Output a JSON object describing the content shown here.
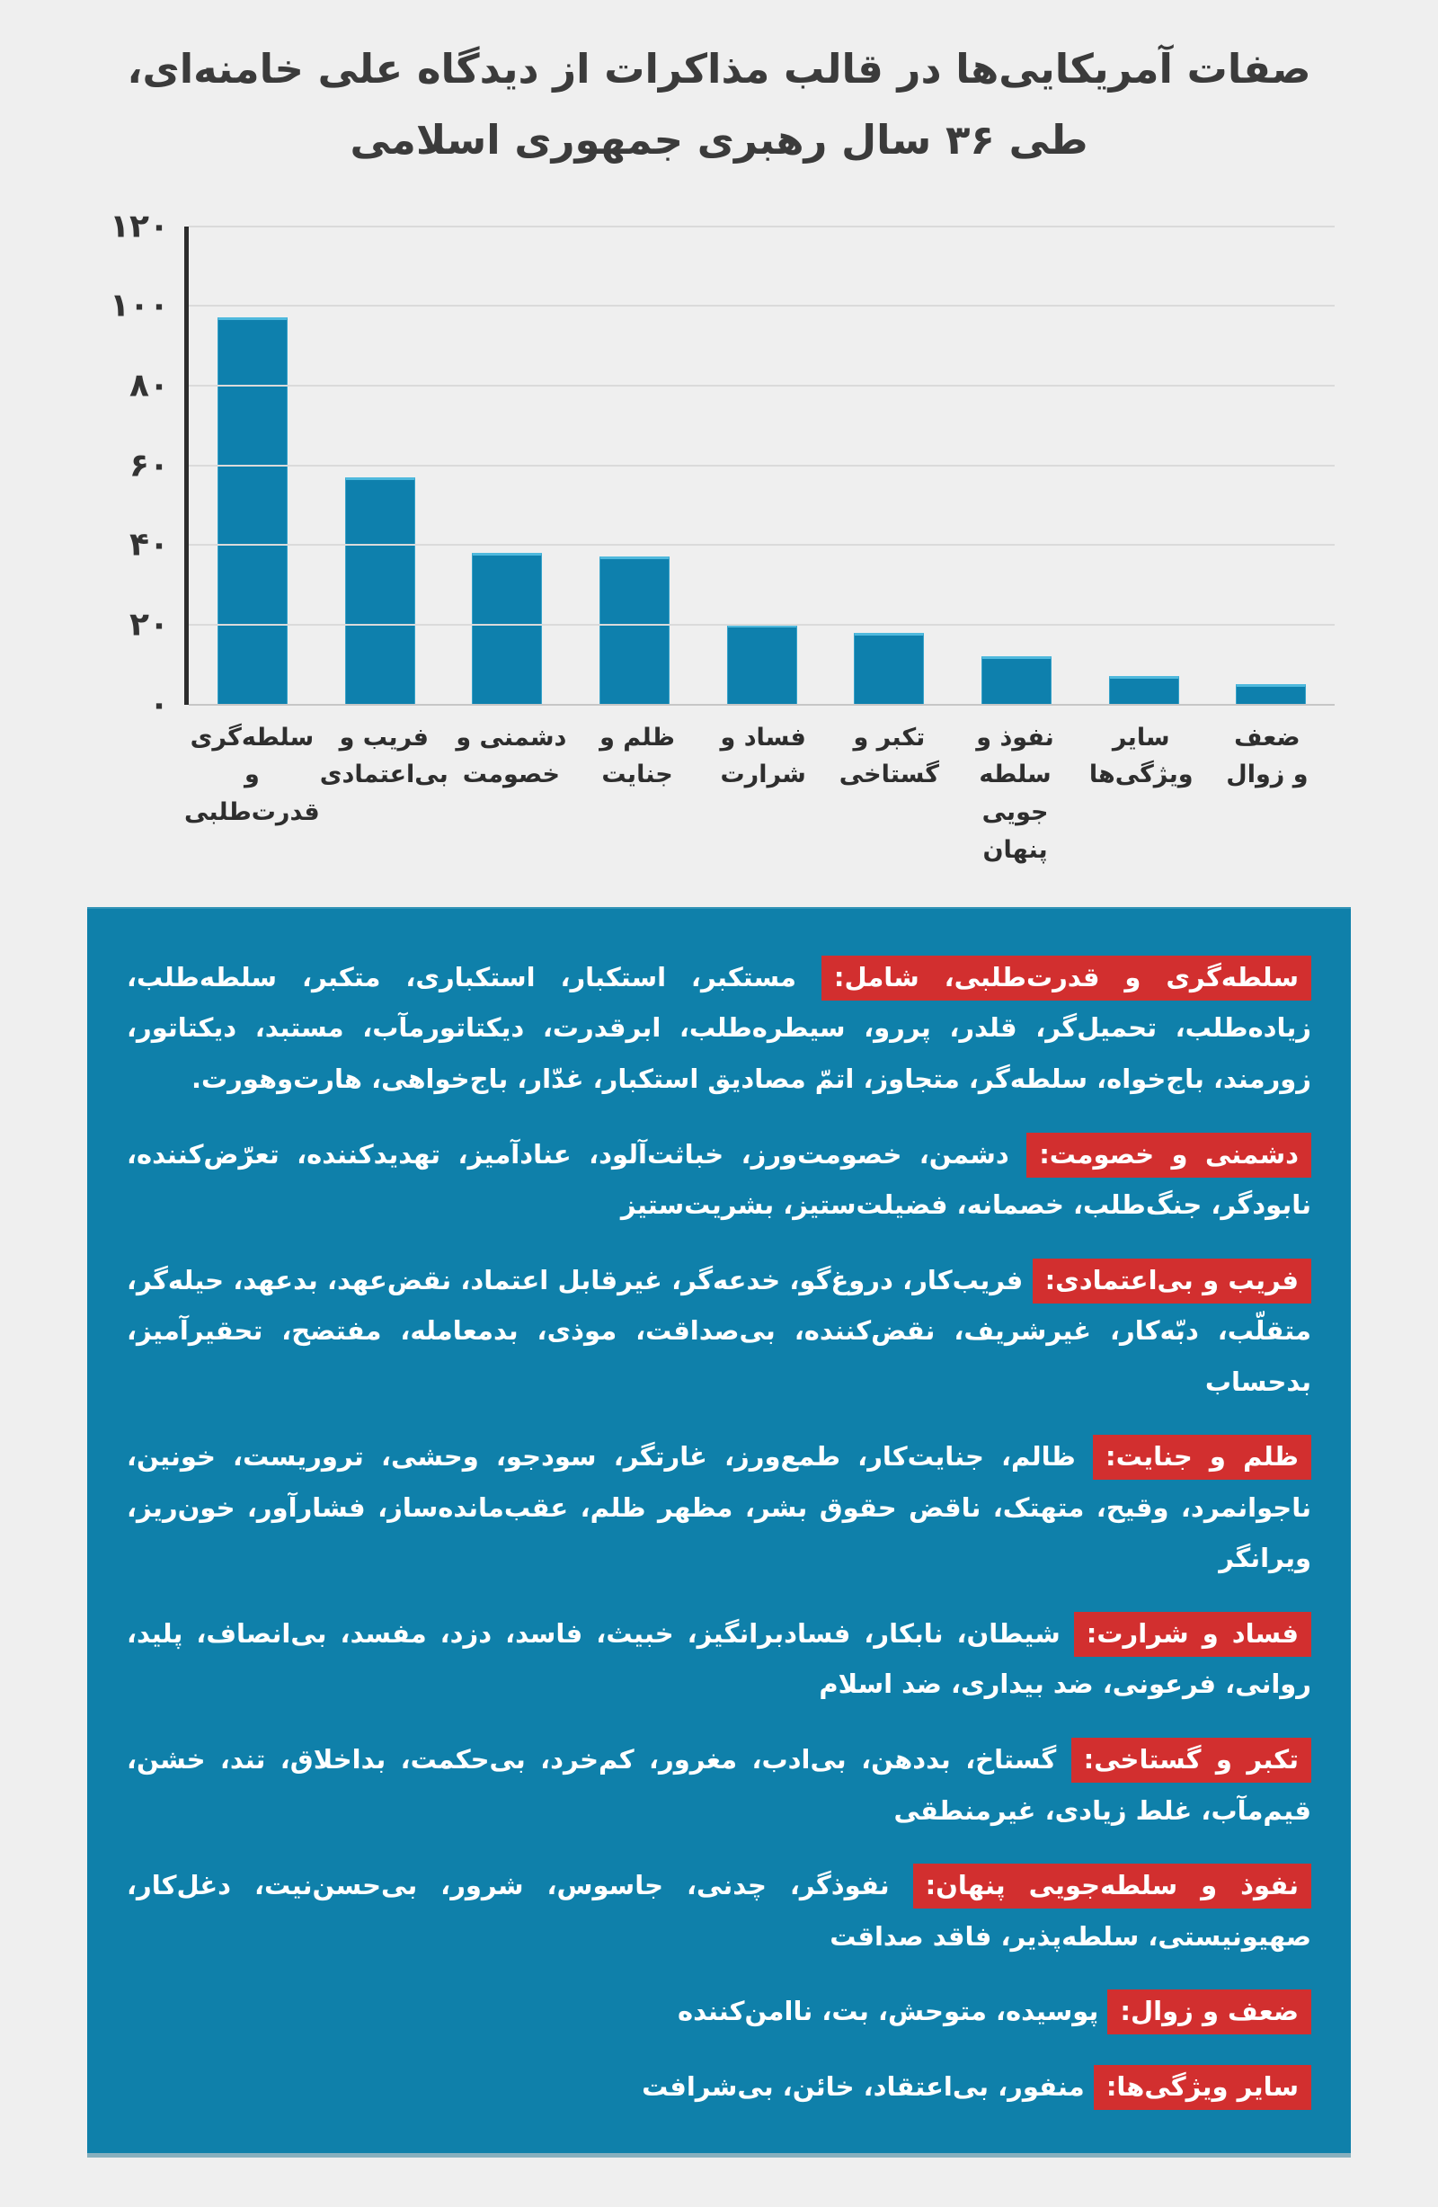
{
  "title": {
    "line1": "صفات آمریکایی‌ها در قالب مذاکرات از دیدگاه علی خامنه‌ای،",
    "line2": "طی ۳۶ سال رهبری جمهوری اسلامی"
  },
  "colors": {
    "page_background": "#efefef",
    "bar_fill": "#0e80ad",
    "bar_edge": "#4fb9dd",
    "panel_background": "#0f80aa",
    "category_tag_background": "#d22f2f",
    "title_text": "#3b3b3b",
    "axis_text": "#333333",
    "gridline": "#dadada",
    "axis_line": "#2c2c2c",
    "panel_text": "#ffffff"
  },
  "chart_data": {
    "type": "bar",
    "title": "صفات آمریکایی‌ها در قالب مذاکرات از دیدگاه علی خامنه‌ای، طی ۳۶ سال رهبری جمهوری اسلامی",
    "xlabel": "",
    "ylabel": "",
    "ylim": [
      0,
      120
    ],
    "grid": true,
    "y_ticks": [
      {
        "v": 0,
        "label": "۰"
      },
      {
        "v": 20,
        "label": "۲۰"
      },
      {
        "v": 40,
        "label": "۴۰"
      },
      {
        "v": 60,
        "label": "۶۰"
      },
      {
        "v": 80,
        "label": "۸۰"
      },
      {
        "v": 100,
        "label": "۱۰۰"
      },
      {
        "v": 120,
        "label": "۱۲۰"
      }
    ],
    "categories": [
      "سلطه‌گری و قدرت‌طلبی",
      "فریب و بی‌اعتمادی",
      "دشمنی و خصومت",
      "ظلم و جنایت",
      "فساد و شرارت",
      "تکبر و گستاخی",
      "نفوذ و سلطه جویی پنهان",
      "سایر ویژگی‌ها",
      "ضعف و زوال"
    ],
    "category_tick_lines": [
      [
        "سلطه‌گری و",
        "قدرت‌طلبی"
      ],
      [
        "فریب و",
        "بی‌اعتمادی"
      ],
      [
        "دشمنی و",
        "خصومت"
      ],
      [
        "ظلم و",
        "جنایت"
      ],
      [
        "فساد و",
        "شرارت"
      ],
      [
        "تکبر و",
        "گستاخی"
      ],
      [
        "نفوذ و سلطه",
        "جویی پنهان"
      ],
      [
        "سایر",
        "ویژگی‌ها"
      ],
      [
        "ضعف",
        "و زوال"
      ]
    ],
    "values": [
      97,
      57,
      38,
      37,
      20,
      18,
      12,
      7,
      5
    ]
  },
  "legend": {
    "items": [
      {
        "label": "سلطه‌گری و قدرت‌طلبی، شامل:",
        "text": "مستکبر، استکبار، استکباری، متکبر، سلطه‌طلب، زیاده‌طلب، تحمیل‌گر، قلدر، پررو، سیطره‌طلب، ابرقدرت، دیکتاتورمآب، مستبد، دیکتاتور، زورمند، باج‌خواه، سلطه‌گر، متجاوز، اتمّ مصادیق استکبار، غدّار، باج‌خواهی، هارت‌وهورت."
      },
      {
        "label": "دشمنی و خصومت:",
        "text": "دشمن، خصومت‌ورز، خباثت‌آلود، عنادآمیز، تهدیدکننده، تعرّض‌کننده، نابودگر، جنگ‌طلب، خصمانه، فضیلت‌ستیز، بشریت‌ستیز"
      },
      {
        "label": "فریب و بی‌اعتمادی:",
        "text": "فریب‌کار، دروغ‌گو، خدعه‌گر، غیرقابل اعتماد، نقض‌عهد، بدعهد، حیله‌گر، متقلّب، دبّه‌کار، غیرشریف، نقض‌کننده، بی‌صداقت، موذی، بدمعامله، مفتضح، تحقیرآمیز، بدحساب"
      },
      {
        "label": "ظلم و جنایت:",
        "text": "ظالم، جنایت‌کار، طمع‌ورز، غارتگر، سودجو، وحشی، تروریست، خونین، ناجوانمرد، وقیح، متهتک، ناقض حقوق بشر، مظهر ظلم، عقب‌مانده‌ساز، فشارآور، خون‌ریز، ویرانگر"
      },
      {
        "label": "فساد و شرارت:",
        "text": "شیطان، نابکار، فسادبرانگیز، خبیث، فاسد، دزد، مفسد، بی‌انصاف، پلید، روانی، فرعونی، ضد بیداری، ضد اسلام"
      },
      {
        "label": "تکبر و گستاخی:",
        "text": "گستاخ، بددهن، بی‌ادب، مغرور، کم‌خرد، بی‌حکمت، بداخلاق، تند، خشن، قیم‌مآب، غلط زیادی، غیرمنطقی"
      },
      {
        "label": "نفوذ و سلطه‌جویی پنهان:",
        "text": "نفوذگر، چدنی، جاسوس، شرور، بی‌حسن‌نیت، دغل‌کار، صهیونیستی، سلطه‌پذیر، فاقد صداقت"
      },
      {
        "label": "ضعف و زوال:",
        "text": "پوسیده، متوحش، بت، ناامن‌کننده"
      },
      {
        "label": "سایر ویژگی‌ها:",
        "text": "منفور، بی‌اعتقاد، خائن، بی‌شرافت"
      }
    ]
  }
}
